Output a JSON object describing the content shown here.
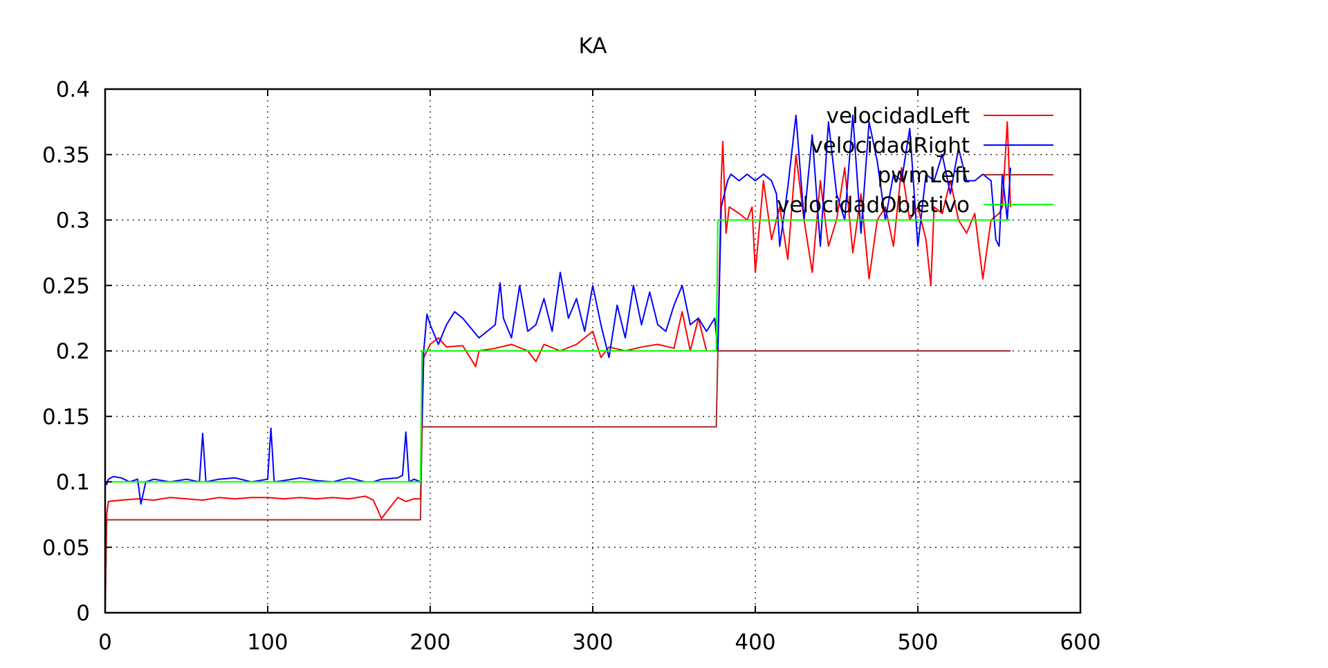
{
  "chart_data": {
    "type": "line",
    "title": "KA",
    "xlabel": "",
    "ylabel": "",
    "xlim": [
      0,
      600
    ],
    "ylim": [
      0,
      0.4
    ],
    "xticks": [
      0,
      100,
      200,
      300,
      400,
      500,
      600
    ],
    "yticks": [
      0,
      0.05,
      0.1,
      0.15,
      0.2,
      0.25,
      0.3,
      0.35,
      0.4
    ],
    "xtick_labels": [
      "0",
      "100",
      "200",
      "300",
      "400",
      "500",
      "600"
    ],
    "ytick_labels": [
      "0",
      "0.05",
      "0.1",
      "0.15",
      "0.2",
      "0.25",
      "0.3",
      "0.35",
      "0.4"
    ],
    "grid": true,
    "legend_position": "top-right",
    "series": [
      {
        "name": "velocidadLeft",
        "color": "#ff0000",
        "x": [
          0,
          1,
          2,
          10,
          20,
          30,
          40,
          50,
          60,
          70,
          80,
          90,
          100,
          110,
          120,
          130,
          140,
          150,
          160,
          165,
          170,
          180,
          185,
          190,
          194,
          196,
          198,
          200,
          205,
          210,
          220,
          228,
          230,
          240,
          250,
          260,
          265,
          270,
          280,
          290,
          300,
          305,
          310,
          320,
          330,
          340,
          350,
          355,
          360,
          365,
          370,
          375,
          377,
          379,
          380,
          382,
          384,
          390,
          395,
          398,
          400,
          405,
          410,
          415,
          420,
          425,
          430,
          435,
          440,
          445,
          450,
          455,
          460,
          465,
          470,
          475,
          480,
          485,
          490,
          495,
          500,
          505,
          508,
          510,
          515,
          520,
          525,
          530,
          535,
          540,
          545,
          550,
          552,
          555,
          557
        ],
        "y": [
          0.0,
          0.075,
          0.085,
          0.086,
          0.087,
          0.086,
          0.088,
          0.087,
          0.086,
          0.088,
          0.087,
          0.088,
          0.088,
          0.087,
          0.088,
          0.087,
          0.088,
          0.087,
          0.089,
          0.086,
          0.072,
          0.088,
          0.085,
          0.087,
          0.087,
          0.195,
          0.2,
          0.205,
          0.21,
          0.203,
          0.204,
          0.188,
          0.2,
          0.202,
          0.205,
          0.2,
          0.192,
          0.205,
          0.2,
          0.205,
          0.215,
          0.195,
          0.203,
          0.2,
          0.203,
          0.205,
          0.202,
          0.23,
          0.2,
          0.225,
          0.2,
          0.2,
          0.2,
          0.33,
          0.36,
          0.29,
          0.31,
          0.305,
          0.3,
          0.31,
          0.26,
          0.33,
          0.285,
          0.31,
          0.27,
          0.35,
          0.3,
          0.26,
          0.33,
          0.28,
          0.3,
          0.34,
          0.275,
          0.32,
          0.255,
          0.3,
          0.31,
          0.28,
          0.34,
          0.3,
          0.31,
          0.285,
          0.25,
          0.31,
          0.305,
          0.33,
          0.3,
          0.29,
          0.305,
          0.255,
          0.3,
          0.305,
          0.31,
          0.375,
          0.31
        ]
      },
      {
        "name": "velocidadRight",
        "color": "#0000ff",
        "x": [
          0,
          1,
          2,
          5,
          10,
          15,
          20,
          22,
          25,
          30,
          40,
          50,
          58,
          60,
          62,
          70,
          80,
          90,
          100,
          102,
          104,
          110,
          120,
          130,
          140,
          150,
          160,
          165,
          170,
          180,
          183,
          185,
          187,
          190,
          194,
          196,
          198,
          200,
          205,
          210,
          215,
          220,
          230,
          240,
          243,
          245,
          250,
          255,
          260,
          265,
          270,
          275,
          280,
          285,
          290,
          295,
          300,
          305,
          310,
          315,
          320,
          325,
          330,
          335,
          340,
          345,
          350,
          355,
          360,
          365,
          370,
          375,
          377,
          379,
          381,
          383,
          385,
          390,
          395,
          400,
          405,
          410,
          413,
          415,
          420,
          425,
          430,
          435,
          440,
          445,
          450,
          455,
          460,
          465,
          470,
          475,
          480,
          485,
          490,
          495,
          500,
          505,
          510,
          515,
          520,
          525,
          530,
          535,
          540,
          545,
          548,
          550,
          552,
          555,
          557
        ],
        "y": [
          0.1,
          0.098,
          0.102,
          0.104,
          0.103,
          0.1,
          0.102,
          0.083,
          0.1,
          0.102,
          0.1,
          0.102,
          0.1,
          0.137,
          0.1,
          0.102,
          0.103,
          0.1,
          0.102,
          0.141,
          0.1,
          0.101,
          0.103,
          0.101,
          0.1,
          0.103,
          0.1,
          0.1,
          0.102,
          0.103,
          0.105,
          0.138,
          0.1,
          0.102,
          0.1,
          0.2,
          0.228,
          0.22,
          0.205,
          0.22,
          0.23,
          0.225,
          0.21,
          0.22,
          0.252,
          0.225,
          0.21,
          0.25,
          0.215,
          0.22,
          0.24,
          0.215,
          0.26,
          0.225,
          0.24,
          0.215,
          0.25,
          0.22,
          0.195,
          0.235,
          0.21,
          0.25,
          0.22,
          0.245,
          0.22,
          0.215,
          0.235,
          0.25,
          0.22,
          0.225,
          0.215,
          0.225,
          0.2,
          0.31,
          0.32,
          0.33,
          0.335,
          0.33,
          0.335,
          0.33,
          0.335,
          0.33,
          0.32,
          0.28,
          0.325,
          0.38,
          0.3,
          0.365,
          0.28,
          0.375,
          0.32,
          0.3,
          0.38,
          0.29,
          0.375,
          0.345,
          0.3,
          0.335,
          0.33,
          0.37,
          0.28,
          0.335,
          0.33,
          0.35,
          0.32,
          0.355,
          0.33,
          0.33,
          0.335,
          0.33,
          0.285,
          0.28,
          0.335,
          0.3,
          0.34
        ]
      },
      {
        "name": "pwmLeft",
        "color": "#a52a2a",
        "x": [
          0,
          1,
          194,
          195,
          376,
          377,
          557
        ],
        "y": [
          0.0,
          0.071,
          0.071,
          0.142,
          0.142,
          0.2,
          0.2
        ]
      },
      {
        "name": "velocidadObjetivo",
        "color": "#00ff00",
        "x": [
          0,
          1,
          194,
          195,
          376,
          377,
          557
        ],
        "y": [
          0.1,
          0.1,
          0.1,
          0.2,
          0.2,
          0.3,
          0.3
        ]
      }
    ]
  }
}
